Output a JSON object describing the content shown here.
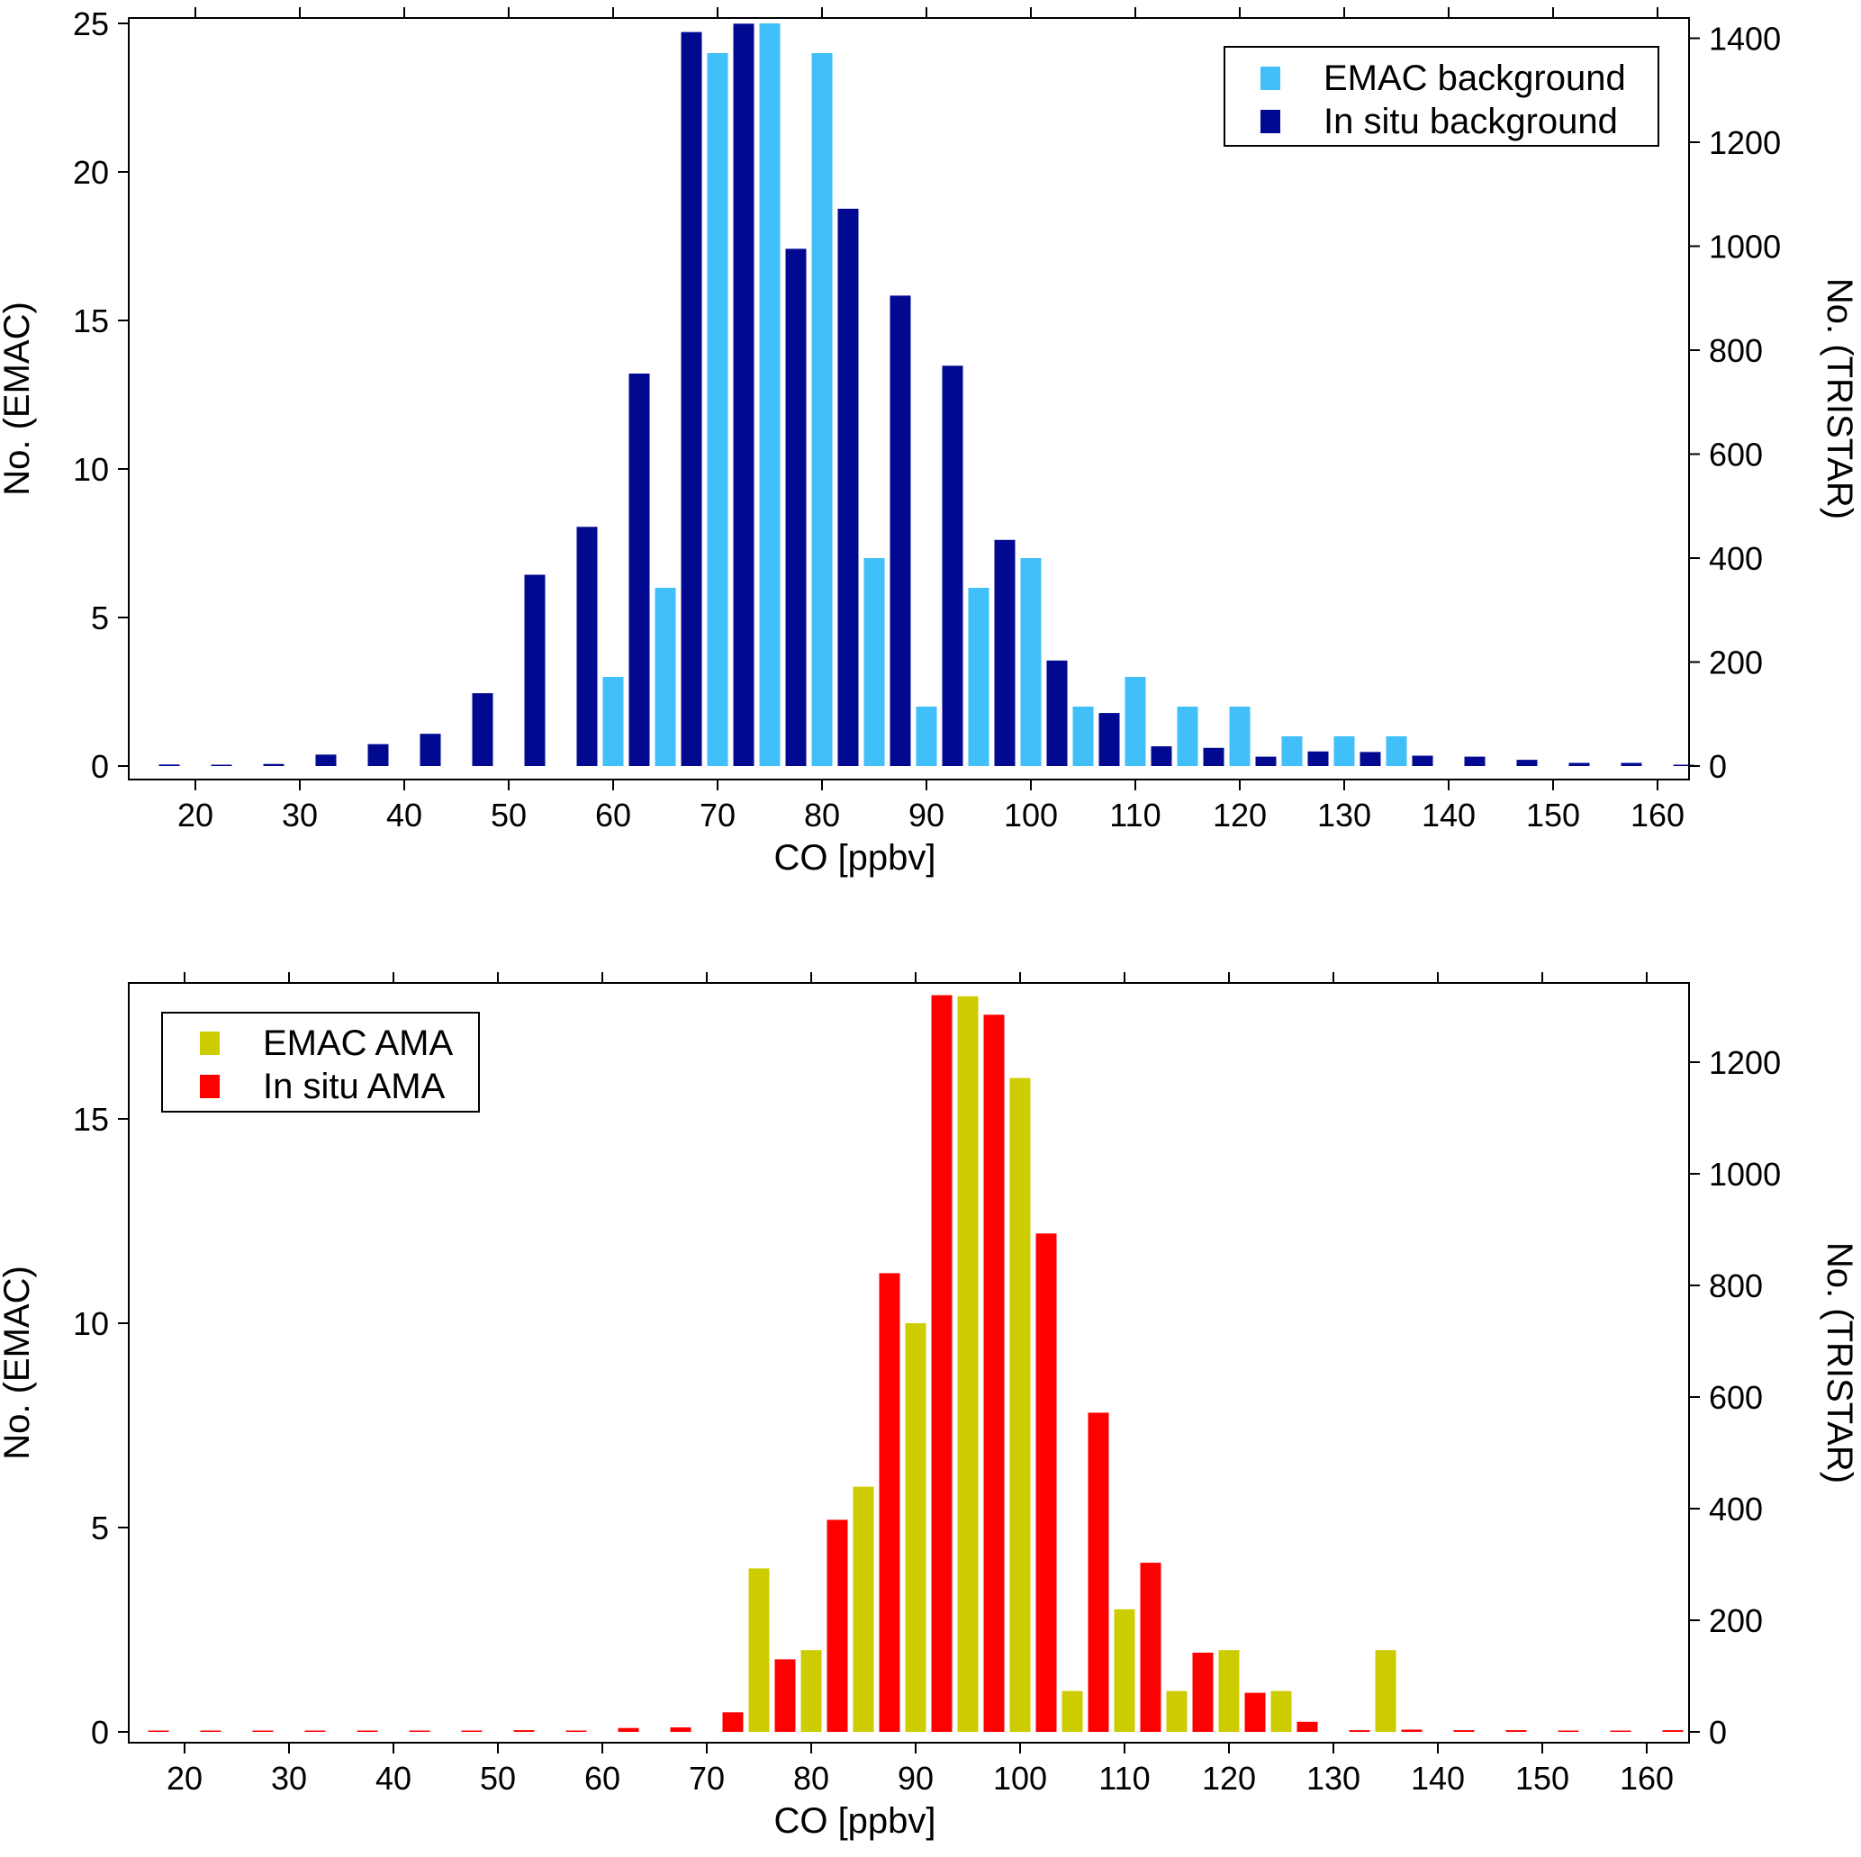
{
  "colors": {
    "emac_background": "#40bff8",
    "insitu_background": "#000990",
    "emac_ama": "#cccc00",
    "insitu_ama": "#ff0000"
  },
  "chart_data": [
    {
      "type": "bar",
      "xlabel": "CO [ppbv]",
      "ylabel_left": "No. (EMAC)",
      "ylabel_right": "No. (TRISTAR)",
      "xlim": [
        15,
        165
      ],
      "ylim_left": [
        0,
        25
      ],
      "ylim_right": [
        0,
        1428
      ],
      "x_ticks": [
        20,
        30,
        40,
        50,
        60,
        70,
        80,
        90,
        100,
        110,
        120,
        130,
        140,
        150,
        160
      ],
      "y_ticks_left": [
        0,
        5,
        10,
        15,
        20,
        25
      ],
      "y_ticks_right": [
        0,
        200,
        400,
        600,
        800,
        1000,
        1200,
        1400
      ],
      "legend_position": "top-right",
      "grid": false,
      "series": [
        {
          "name": "EMAC background",
          "axis": "left",
          "color_key": "emac_background",
          "x": [
            60,
            65,
            70,
            75,
            80,
            85,
            90,
            95,
            100,
            105,
            110,
            115,
            120,
            125,
            130,
            135
          ],
          "values": [
            3,
            6,
            24,
            25,
            24,
            7,
            2,
            6,
            7,
            2,
            3,
            2,
            2,
            1,
            1,
            1
          ]
        },
        {
          "name": "In situ background",
          "axis": "right",
          "color_key": "insitu_background",
          "x": [
            17.5,
            22.5,
            27.5,
            32.5,
            37.5,
            42.5,
            47.5,
            52.5,
            57.5,
            62.5,
            67.5,
            72.5,
            77.5,
            82.5,
            87.5,
            92.5,
            97.5,
            102.5,
            107.5,
            112.5,
            117.5,
            122.5,
            127.5,
            132.5,
            137.5,
            142.5,
            147.5,
            152.5,
            157.5,
            162.5
          ],
          "values": [
            3,
            2,
            4,
            22,
            42,
            62,
            140,
            368,
            460,
            755,
            1412,
            1428,
            995,
            1072,
            905,
            770,
            435,
            203,
            102,
            38,
            35,
            18,
            28,
            27,
            20,
            18,
            12,
            6,
            6,
            2
          ]
        }
      ]
    },
    {
      "type": "bar",
      "xlabel": "CO [ppbv]",
      "ylabel_left": "No. (EMAC)",
      "ylabel_right": "No. (TRISTAR)",
      "xlim": [
        15,
        165
      ],
      "ylim_left": [
        0,
        18
      ],
      "ylim_right": [
        0,
        1320
      ],
      "x_ticks": [
        20,
        30,
        40,
        50,
        60,
        70,
        80,
        90,
        100,
        110,
        120,
        130,
        140,
        150,
        160
      ],
      "y_ticks_left": [
        0,
        5,
        10,
        15
      ],
      "y_ticks_right": [
        0,
        200,
        400,
        600,
        800,
        1000,
        1200
      ],
      "legend_position": "top-left",
      "grid": false,
      "series": [
        {
          "name": "EMAC AMA",
          "axis": "left",
          "color_key": "emac_ama",
          "x": [
            75,
            80,
            85,
            90,
            95,
            100,
            105,
            110,
            115,
            120,
            125,
            135
          ],
          "values": [
            4,
            2,
            6,
            10,
            18,
            16,
            1,
            3,
            1,
            2,
            1,
            2
          ]
        },
        {
          "name": "In situ AMA",
          "axis": "right",
          "color_key": "insitu_ama",
          "x": [
            17.5,
            22.5,
            27.5,
            32.5,
            37.5,
            42.5,
            47.5,
            52.5,
            57.5,
            62.5,
            67.5,
            72.5,
            77.5,
            82.5,
            87.5,
            92.5,
            97.5,
            102.5,
            107.5,
            112.5,
            117.5,
            122.5,
            127.5,
            132.5,
            137.5,
            142.5,
            147.5,
            152.5,
            157.5,
            162.5
          ],
          "values": [
            1,
            1,
            1,
            1,
            1,
            1,
            1,
            3,
            1,
            7,
            8,
            35,
            130,
            380,
            822,
            1320,
            1285,
            893,
            572,
            303,
            142,
            70,
            18,
            3,
            4,
            3,
            3,
            1,
            1,
            3
          ]
        }
      ]
    }
  ]
}
